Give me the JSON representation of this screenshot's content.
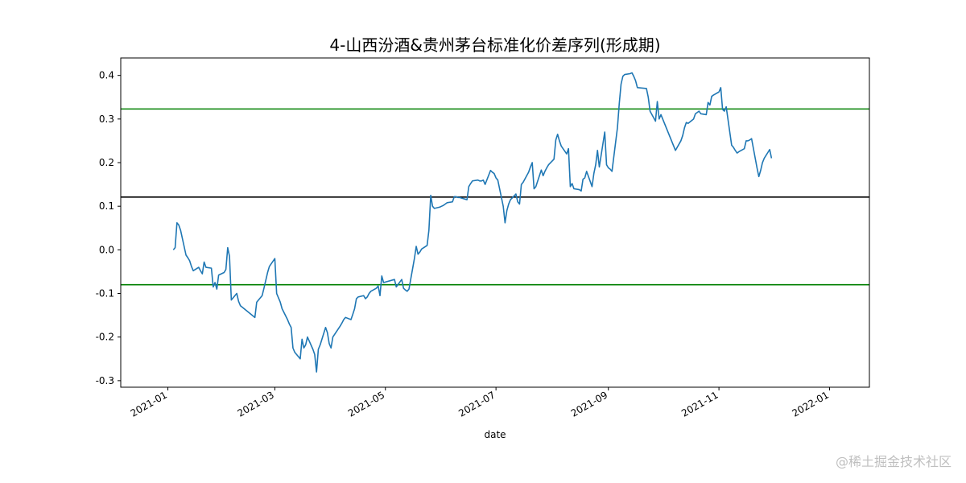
{
  "chart_data": {
    "type": "line",
    "title": "4-山西汾酒&贵州茅台标准化价差序列(形成期)",
    "xlabel": "date",
    "ylabel": "",
    "xlim": [
      "2020-12-06",
      "2022-01-23"
    ],
    "ylim": [
      -0.315,
      0.44
    ],
    "grid": false,
    "legend": "none",
    "xticks": [
      "2021-01-01",
      "2021-03-01",
      "2021-05-01",
      "2021-07-01",
      "2021-09-01",
      "2021-11-01",
      "2022-01-01"
    ],
    "xtick_labels": [
      "2021-01",
      "2021-03",
      "2021-05",
      "2021-07",
      "2021-09",
      "2021-11",
      "2022-01"
    ],
    "yticks": [
      0.4,
      0.3,
      0.2,
      0.1,
      0.0,
      -0.1,
      -0.2,
      -0.3
    ],
    "ytick_labels": [
      "0.4",
      "0.3",
      "0.2",
      "0.1",
      "0.0",
      "-0.1",
      "-0.2",
      "-0.3"
    ],
    "hlines": [
      {
        "y": 0.323,
        "color": "#008000"
      },
      {
        "y": 0.121,
        "color": "#000000"
      },
      {
        "y": -0.08,
        "color": "#008000"
      }
    ],
    "series": [
      {
        "color": "#1f77b4",
        "points": [
          [
            "2021-01-04",
            0.0
          ],
          [
            "2021-01-05",
            0.005
          ],
          [
            "2021-01-06",
            0.062
          ],
          [
            "2021-01-07",
            0.057
          ],
          [
            "2021-01-08",
            0.045
          ],
          [
            "2021-01-11",
            -0.012
          ],
          [
            "2021-01-12",
            -0.018
          ],
          [
            "2021-01-13",
            -0.025
          ],
          [
            "2021-01-14",
            -0.038
          ],
          [
            "2021-01-15",
            -0.048
          ],
          [
            "2021-01-18",
            -0.04
          ],
          [
            "2021-01-19",
            -0.048
          ],
          [
            "2021-01-20",
            -0.055
          ],
          [
            "2021-01-21",
            -0.028
          ],
          [
            "2021-01-22",
            -0.04
          ],
          [
            "2021-01-25",
            -0.042
          ],
          [
            "2021-01-26",
            -0.085
          ],
          [
            "2021-01-27",
            -0.075
          ],
          [
            "2021-01-28",
            -0.09
          ],
          [
            "2021-01-29",
            -0.058
          ],
          [
            "2021-02-01",
            -0.052
          ],
          [
            "2021-02-02",
            -0.045
          ],
          [
            "2021-02-03",
            0.005
          ],
          [
            "2021-02-04",
            -0.015
          ],
          [
            "2021-02-05",
            -0.115
          ],
          [
            "2021-02-08",
            -0.1
          ],
          [
            "2021-02-09",
            -0.118
          ],
          [
            "2021-02-10",
            -0.128
          ],
          [
            "2021-02-18",
            -0.155
          ],
          [
            "2021-02-19",
            -0.12
          ],
          [
            "2021-02-22",
            -0.105
          ],
          [
            "2021-02-23",
            -0.088
          ],
          [
            "2021-02-24",
            -0.07
          ],
          [
            "2021-02-25",
            -0.052
          ],
          [
            "2021-02-26",
            -0.038
          ],
          [
            "2021-03-01",
            -0.02
          ],
          [
            "2021-03-02",
            -0.1
          ],
          [
            "2021-03-03",
            -0.11
          ],
          [
            "2021-03-04",
            -0.12
          ],
          [
            "2021-03-05",
            -0.135
          ],
          [
            "2021-03-08",
            -0.16
          ],
          [
            "2021-03-09",
            -0.17
          ],
          [
            "2021-03-10",
            -0.178
          ],
          [
            "2021-03-11",
            -0.225
          ],
          [
            "2021-03-12",
            -0.235
          ],
          [
            "2021-03-15",
            -0.25
          ],
          [
            "2021-03-16",
            -0.205
          ],
          [
            "2021-03-17",
            -0.225
          ],
          [
            "2021-03-18",
            -0.218
          ],
          [
            "2021-03-19",
            -0.2
          ],
          [
            "2021-03-22",
            -0.228
          ],
          [
            "2021-03-23",
            -0.24
          ],
          [
            "2021-03-24",
            -0.28
          ],
          [
            "2021-03-25",
            -0.228
          ],
          [
            "2021-03-26",
            -0.218
          ],
          [
            "2021-03-29",
            -0.178
          ],
          [
            "2021-03-30",
            -0.19
          ],
          [
            "2021-03-31",
            -0.215
          ],
          [
            "2021-04-01",
            -0.225
          ],
          [
            "2021-04-02",
            -0.2
          ],
          [
            "2021-04-06",
            -0.175
          ],
          [
            "2021-04-07",
            -0.168
          ],
          [
            "2021-04-08",
            -0.16
          ],
          [
            "2021-04-09",
            -0.155
          ],
          [
            "2021-04-12",
            -0.16
          ],
          [
            "2021-04-13",
            -0.148
          ],
          [
            "2021-04-14",
            -0.135
          ],
          [
            "2021-04-15",
            -0.112
          ],
          [
            "2021-04-16",
            -0.108
          ],
          [
            "2021-04-19",
            -0.105
          ],
          [
            "2021-04-20",
            -0.112
          ],
          [
            "2021-04-21",
            -0.108
          ],
          [
            "2021-04-22",
            -0.1
          ],
          [
            "2021-04-23",
            -0.095
          ],
          [
            "2021-04-26",
            -0.088
          ],
          [
            "2021-04-27",
            -0.083
          ],
          [
            "2021-04-28",
            -0.105
          ],
          [
            "2021-04-29",
            -0.06
          ],
          [
            "2021-04-30",
            -0.075
          ],
          [
            "2021-05-06",
            -0.068
          ],
          [
            "2021-05-07",
            -0.085
          ],
          [
            "2021-05-10",
            -0.068
          ],
          [
            "2021-05-11",
            -0.088
          ],
          [
            "2021-05-12",
            -0.092
          ],
          [
            "2021-05-13",
            -0.095
          ],
          [
            "2021-05-14",
            -0.09
          ],
          [
            "2021-05-17",
            -0.02
          ],
          [
            "2021-05-18",
            0.008
          ],
          [
            "2021-05-19",
            -0.01
          ],
          [
            "2021-05-20",
            -0.005
          ],
          [
            "2021-05-21",
            0.002
          ],
          [
            "2021-05-24",
            0.01
          ],
          [
            "2021-05-25",
            0.045
          ],
          [
            "2021-05-26",
            0.125
          ],
          [
            "2021-05-27",
            0.1
          ],
          [
            "2021-05-28",
            0.095
          ],
          [
            "2021-05-31",
            0.098
          ],
          [
            "2021-06-01",
            0.1
          ],
          [
            "2021-06-02",
            0.102
          ],
          [
            "2021-06-03",
            0.105
          ],
          [
            "2021-06-04",
            0.108
          ],
          [
            "2021-06-07",
            0.11
          ],
          [
            "2021-06-08",
            0.122
          ],
          [
            "2021-06-09",
            0.122
          ],
          [
            "2021-06-10",
            0.12
          ],
          [
            "2021-06-11",
            0.12
          ],
          [
            "2021-06-15",
            0.115
          ],
          [
            "2021-06-16",
            0.145
          ],
          [
            "2021-06-17",
            0.152
          ],
          [
            "2021-06-18",
            0.158
          ],
          [
            "2021-06-21",
            0.16
          ],
          [
            "2021-06-22",
            0.158
          ],
          [
            "2021-06-23",
            0.158
          ],
          [
            "2021-06-24",
            0.16
          ],
          [
            "2021-06-25",
            0.15
          ],
          [
            "2021-06-28",
            0.182
          ],
          [
            "2021-06-29",
            0.178
          ],
          [
            "2021-06-30",
            0.175
          ],
          [
            "2021-07-01",
            0.165
          ],
          [
            "2021-07-02",
            0.16
          ],
          [
            "2021-07-05",
            0.1
          ],
          [
            "2021-07-06",
            0.062
          ],
          [
            "2021-07-07",
            0.09
          ],
          [
            "2021-07-08",
            0.105
          ],
          [
            "2021-07-09",
            0.115
          ],
          [
            "2021-07-12",
            0.128
          ],
          [
            "2021-07-13",
            0.11
          ],
          [
            "2021-07-14",
            0.105
          ],
          [
            "2021-07-15",
            0.15
          ],
          [
            "2021-07-16",
            0.155
          ],
          [
            "2021-07-19",
            0.178
          ],
          [
            "2021-07-20",
            0.19
          ],
          [
            "2021-07-21",
            0.2
          ],
          [
            "2021-07-22",
            0.14
          ],
          [
            "2021-07-23",
            0.145
          ],
          [
            "2021-07-26",
            0.183
          ],
          [
            "2021-07-27",
            0.17
          ],
          [
            "2021-07-28",
            0.18
          ],
          [
            "2021-07-29",
            0.188
          ],
          [
            "2021-07-30",
            0.195
          ],
          [
            "2021-08-02",
            0.208
          ],
          [
            "2021-08-03",
            0.252
          ],
          [
            "2021-08-04",
            0.265
          ],
          [
            "2021-08-05",
            0.25
          ],
          [
            "2021-08-06",
            0.238
          ],
          [
            "2021-08-09",
            0.22
          ],
          [
            "2021-08-10",
            0.232
          ],
          [
            "2021-08-11",
            0.145
          ],
          [
            "2021-08-12",
            0.152
          ],
          [
            "2021-08-13",
            0.14
          ],
          [
            "2021-08-16",
            0.138
          ],
          [
            "2021-08-17",
            0.135
          ],
          [
            "2021-08-18",
            0.162
          ],
          [
            "2021-08-19",
            0.165
          ],
          [
            "2021-08-20",
            0.18
          ],
          [
            "2021-08-23",
            0.145
          ],
          [
            "2021-08-24",
            0.175
          ],
          [
            "2021-08-25",
            0.195
          ],
          [
            "2021-08-26",
            0.228
          ],
          [
            "2021-08-27",
            0.19
          ],
          [
            "2021-08-30",
            0.27
          ],
          [
            "2021-08-31",
            0.195
          ],
          [
            "2021-09-01",
            0.188
          ],
          [
            "2021-09-02",
            0.185
          ],
          [
            "2021-09-03",
            0.18
          ],
          [
            "2021-09-06",
            0.28
          ],
          [
            "2021-09-07",
            0.335
          ],
          [
            "2021-09-08",
            0.38
          ],
          [
            "2021-09-09",
            0.398
          ],
          [
            "2021-09-10",
            0.402
          ],
          [
            "2021-09-13",
            0.404
          ],
          [
            "2021-09-14",
            0.406
          ],
          [
            "2021-09-15",
            0.398
          ],
          [
            "2021-09-16",
            0.388
          ],
          [
            "2021-09-17",
            0.372
          ],
          [
            "2021-09-22",
            0.37
          ],
          [
            "2021-09-23",
            0.35
          ],
          [
            "2021-09-24",
            0.318
          ],
          [
            "2021-09-27",
            0.295
          ],
          [
            "2021-09-28",
            0.34
          ],
          [
            "2021-09-29",
            0.3
          ],
          [
            "2021-09-30",
            0.31
          ],
          [
            "2021-10-08",
            0.228
          ],
          [
            "2021-10-11",
            0.25
          ],
          [
            "2021-10-12",
            0.262
          ],
          [
            "2021-10-13",
            0.28
          ],
          [
            "2021-10-14",
            0.292
          ],
          [
            "2021-10-15",
            0.29
          ],
          [
            "2021-10-18",
            0.3
          ],
          [
            "2021-10-19",
            0.312
          ],
          [
            "2021-10-20",
            0.315
          ],
          [
            "2021-10-21",
            0.318
          ],
          [
            "2021-10-22",
            0.312
          ],
          [
            "2021-10-25",
            0.31
          ],
          [
            "2021-10-26",
            0.338
          ],
          [
            "2021-10-27",
            0.332
          ],
          [
            "2021-10-28",
            0.352
          ],
          [
            "2021-10-29",
            0.355
          ],
          [
            "2021-11-01",
            0.362
          ],
          [
            "2021-11-02",
            0.372
          ],
          [
            "2021-11-03",
            0.322
          ],
          [
            "2021-11-04",
            0.318
          ],
          [
            "2021-11-05",
            0.328
          ],
          [
            "2021-11-08",
            0.24
          ],
          [
            "2021-11-09",
            0.235
          ],
          [
            "2021-11-10",
            0.228
          ],
          [
            "2021-11-11",
            0.222
          ],
          [
            "2021-11-12",
            0.225
          ],
          [
            "2021-11-15",
            0.232
          ],
          [
            "2021-11-16",
            0.25
          ],
          [
            "2021-11-17",
            0.25
          ],
          [
            "2021-11-18",
            0.252
          ],
          [
            "2021-11-19",
            0.255
          ],
          [
            "2021-11-22",
            0.188
          ],
          [
            "2021-11-23",
            0.168
          ],
          [
            "2021-11-24",
            0.182
          ],
          [
            "2021-11-25",
            0.2
          ],
          [
            "2021-11-26",
            0.21
          ],
          [
            "2021-11-29",
            0.23
          ],
          [
            "2021-11-30",
            0.21
          ]
        ]
      }
    ]
  },
  "watermark": "@稀土掘金技术社区"
}
